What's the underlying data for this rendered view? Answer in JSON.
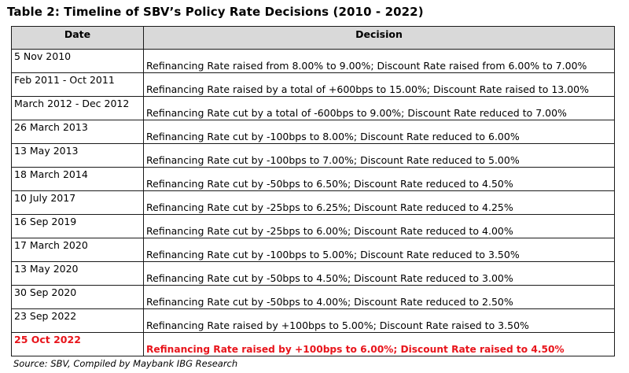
{
  "title": "Table 2: Timeline of SBV’s Policy Rate Decisions (2010 - 2022)",
  "headers": {
    "date": "Date",
    "decision": "Decision"
  },
  "rows": [
    {
      "date": "5 Nov 2010",
      "decision": "Refinancing Rate raised from 8.00% to 9.00%; Discount Rate raised from 6.00% to 7.00%"
    },
    {
      "date": "Feb 2011 - Oct 2011",
      "decision": "Refinancing Rate raised by a total of +600bps to 15.00%; Discount Rate raised to 13.00%"
    },
    {
      "date": "March 2012 - Dec 2012",
      "decision": "Refinancing Rate cut by a total of -600bps to 9.00%; Discount Rate reduced to 7.00%"
    },
    {
      "date": "26 March 2013",
      "decision": "Refinancing Rate cut by -100bps to 8.00%; Discount Rate reduced to 6.00%"
    },
    {
      "date": "13 May 2013",
      "decision": "Refinancing Rate cut by -100bps to 7.00%; Discount Rate reduced to 5.00%"
    },
    {
      "date": "18 March 2014",
      "decision": "Refinancing Rate cut by -50bps to 6.50%; Discount Rate reduced to 4.50%"
    },
    {
      "date": "10 July 2017",
      "decision": "Refinancing Rate cut by -25bps to 6.25%; Discount Rate reduced to 4.25%"
    },
    {
      "date": "16 Sep 2019",
      "decision": "Refinancing Rate cut by -25bps to 6.00%; Discount Rate reduced to 4.00%"
    },
    {
      "date": "17 March 2020",
      "decision": "Refinancing Rate cut by -100bps to 5.00%; Discount Rate reduced to 3.50%"
    },
    {
      "date": "13 May 2020",
      "decision": "Refinancing Rate cut by -50bps to 4.50%; Discount Rate reduced to 3.00%"
    },
    {
      "date": "30 Sep 2020",
      "decision": "Refinancing Rate cut by -50bps to 4.00%; Discount Rate reduced to 2.50%"
    },
    {
      "date": "23 Sep 2022",
      "decision": "Refinancing Rate raised by +100bps to 5.00%; Discount Rate raised to 3.50%"
    },
    {
      "date": "25 Oct 2022",
      "decision": "Refinancing Rate raised by +100bps to 6.00%; Discount Rate raised to 4.50%",
      "highlight": true
    }
  ],
  "highlight_color": "#e8141b",
  "header_background": "#d9d9d9",
  "source": "Source: SBV, Compiled by Maybank IBG Research"
}
